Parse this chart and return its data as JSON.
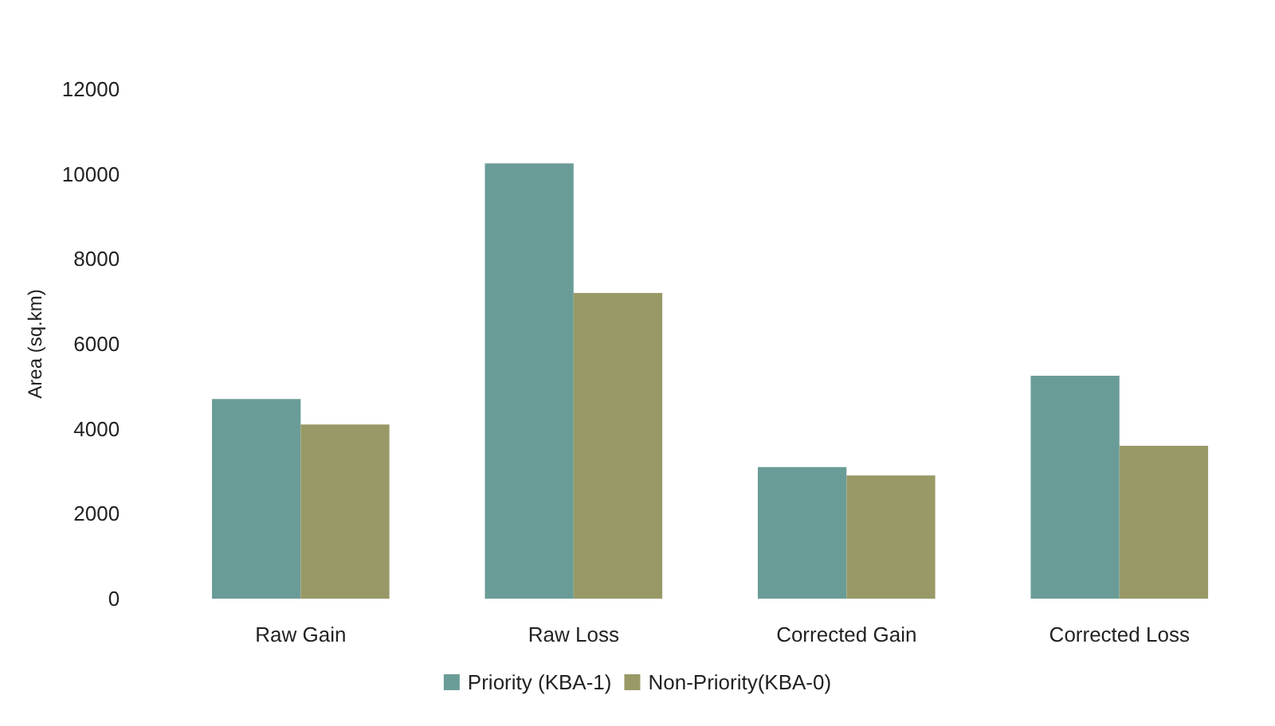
{
  "chart_data": {
    "type": "bar",
    "ylabel": "Area (sq.km)",
    "categories": [
      "Raw Gain",
      "Raw Loss",
      "Corrected Gain",
      "Corrected Loss"
    ],
    "series": [
      {
        "name": "Priority (KBA-1)",
        "color": "#6a9c97",
        "values": [
          4700,
          10250,
          3100,
          5250
        ]
      },
      {
        "name": "Non-Priority(KBA-0)",
        "color": "#999967",
        "values": [
          4100,
          7200,
          2900,
          3600
        ]
      }
    ],
    "ylim": [
      0,
      12000
    ],
    "yticks": [
      0,
      2000,
      4000,
      6000,
      8000,
      10000,
      12000
    ],
    "grid": false,
    "legend": "bottom"
  }
}
